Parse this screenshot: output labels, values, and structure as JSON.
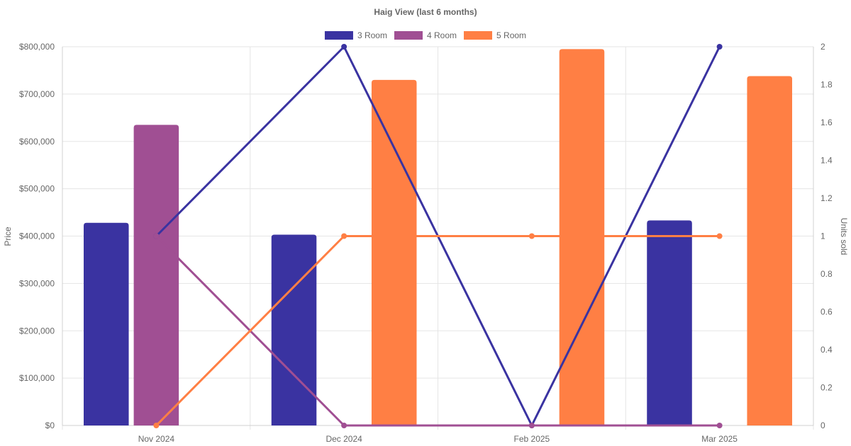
{
  "chart_data": {
    "type": "bar",
    "title": "Haig View (last 6 months)",
    "categories": [
      "Nov 2024",
      "Dec 2024",
      "Feb 2025",
      "Mar 2025"
    ],
    "y_left": {
      "label": "Price",
      "lim": [
        0,
        800000
      ],
      "ticks": [
        0,
        100000,
        200000,
        300000,
        400000,
        500000,
        600000,
        700000,
        800000
      ],
      "tick_labels": [
        "$0",
        "$100,000",
        "$200,000",
        "$300,000",
        "$400,000",
        "$500,000",
        "$600,000",
        "$700,000",
        "$800,000"
      ]
    },
    "y_right": {
      "label": "Units sold",
      "lim": [
        0,
        2
      ],
      "ticks": [
        0,
        0.2,
        0.4,
        0.6,
        0.8,
        1,
        1.2,
        1.4,
        1.6,
        1.8,
        2
      ],
      "tick_labels": [
        "0",
        "0.2",
        "0.4",
        "0.6",
        "0.8",
        "1",
        "1.2",
        "1.4",
        "1.6",
        "1.8",
        "2"
      ]
    },
    "grid": true,
    "legend_position": "top-center",
    "series": [
      {
        "name": "3 Room",
        "color": "#3a33a1",
        "price": [
          428000,
          403000,
          null,
          433000
        ],
        "units_sold": [
          1,
          2,
          0,
          2
        ]
      },
      {
        "name": "4 Room",
        "color": "#a04f93",
        "price": [
          635000,
          null,
          null,
          null
        ],
        "units_sold": [
          1,
          0,
          0,
          0
        ]
      },
      {
        "name": "5 Room",
        "color": "#ff7f44",
        "price": [
          null,
          730000,
          795000,
          738000
        ],
        "units_sold": [
          0,
          1,
          1,
          1
        ]
      }
    ]
  }
}
